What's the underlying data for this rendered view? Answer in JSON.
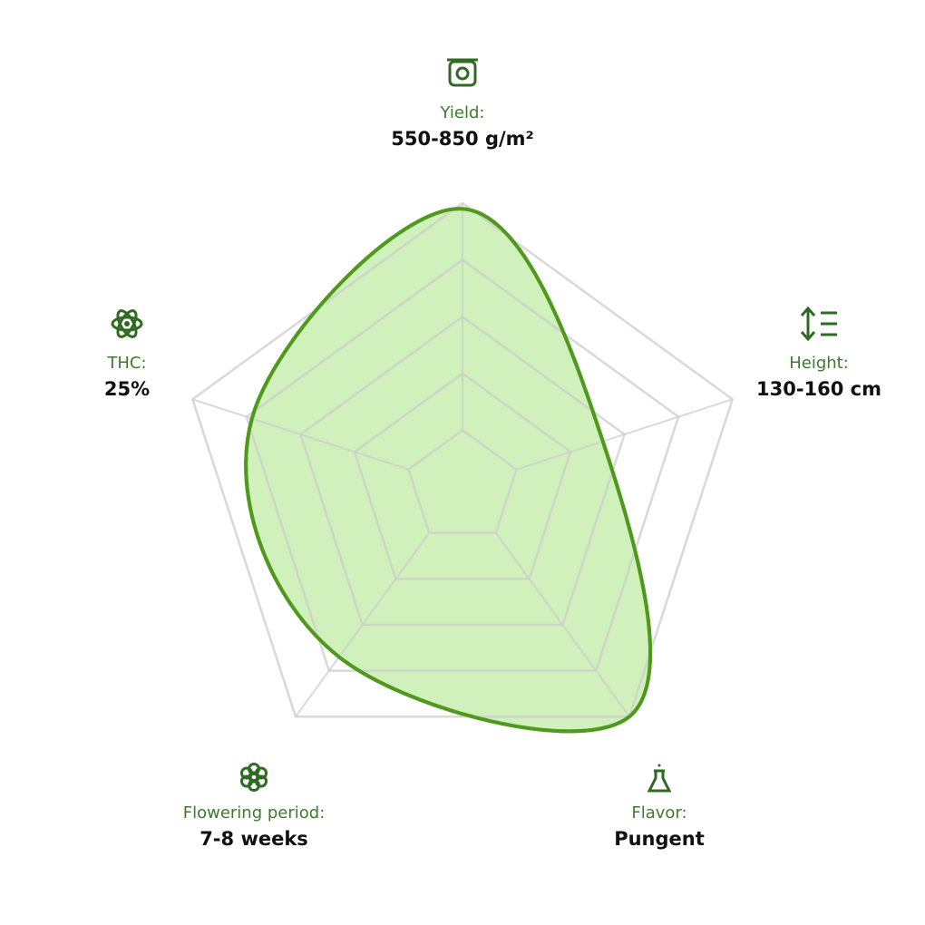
{
  "chart_data": {
    "type": "radar",
    "axes": [
      {
        "label": "Yield:",
        "value": "550-850 g/m²"
      },
      {
        "label": "Height:",
        "value": "130-160 cm"
      },
      {
        "label": "Flavor:",
        "value": "Pungent"
      },
      {
        "label": "Flowering period:",
        "value": "7-8 weeks"
      },
      {
        "label": "THC:",
        "value": "25%"
      }
    ],
    "rlim": [
      0,
      5
    ],
    "rticks": [
      1,
      2,
      3,
      4,
      5
    ],
    "grid_color": "#cccccc",
    "series": [
      {
        "color": "#4f9a1c",
        "fill": "#c9efb0",
        "values": [
          4.9,
          2.6,
          5,
          3.7,
          3.9
        ]
      }
    ]
  }
}
